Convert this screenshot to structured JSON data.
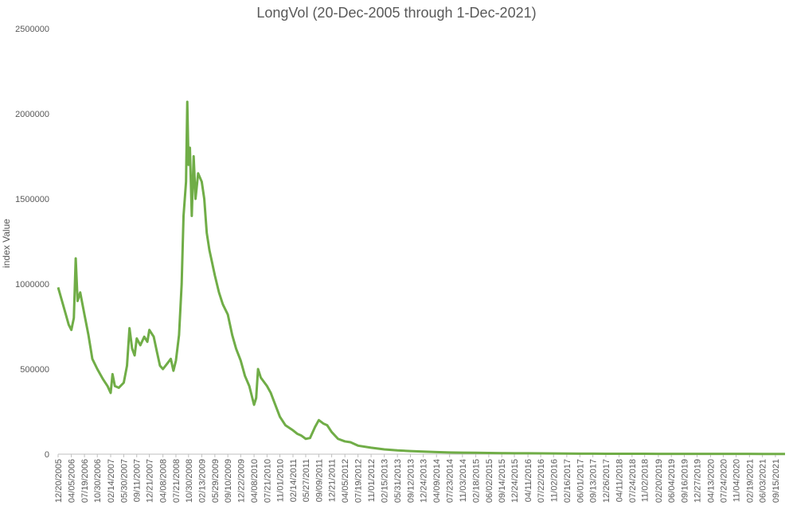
{
  "chart_data": {
    "type": "line",
    "title": "LongVol (20-Dec-2005 through 1-Dec-2021)",
    "xlabel": "",
    "ylabel": "index Value",
    "ylim": [
      0,
      2500000
    ],
    "y_ticks": [
      "0",
      "500000",
      "1000000",
      "1500000",
      "2000000",
      "2500000"
    ],
    "grid": false,
    "legend": "none",
    "line_color": "#70ad47",
    "x_tick_labels": [
      "12/20/2005",
      "04/05/2006",
      "07/19/2006",
      "10/30/2006",
      "02/14/2007",
      "05/30/2007",
      "09/11/2007",
      "12/21/2007",
      "04/08/2008",
      "07/21/2008",
      "10/30/2008",
      "02/13/2009",
      "05/29/2009",
      "09/10/2009",
      "12/22/2009",
      "04/08/2010",
      "07/21/2010",
      "11/01/2010",
      "02/14/2011",
      "05/27/2011",
      "09/09/2011",
      "12/21/2011",
      "04/05/2012",
      "07/19/2012",
      "11/01/2012",
      "02/15/2013",
      "05/31/2013",
      "09/12/2013",
      "12/24/2013",
      "04/09/2014",
      "07/23/2014",
      "11/03/2014",
      "02/18/2015",
      "06/02/2015",
      "09/14/2015",
      "12/24/2015",
      "04/11/2016",
      "07/22/2016",
      "11/02/2016",
      "02/16/2017",
      "06/01/2017",
      "09/13/2017",
      "12/26/2017",
      "04/11/2018",
      "07/24/2018",
      "11/02/2018",
      "02/20/2019",
      "06/04/2019",
      "09/16/2019",
      "12/27/2019",
      "04/13/2020",
      "07/24/2020",
      "11/04/2020",
      "02/19/2021",
      "06/03/2021",
      "09/15/2021"
    ],
    "series": [
      {
        "points": [
          [
            "12/20/2005",
            980000
          ],
          [
            "01/20/2006",
            900000
          ],
          [
            "02/20/2006",
            820000
          ],
          [
            "03/15/2006",
            760000
          ],
          [
            "04/05/2006",
            730000
          ],
          [
            "04/25/2006",
            800000
          ],
          [
            "05/10/2006",
            1150000
          ],
          [
            "05/25/2006",
            900000
          ],
          [
            "06/15/2006",
            950000
          ],
          [
            "07/19/2006",
            820000
          ],
          [
            "08/20/2006",
            700000
          ],
          [
            "09/20/2006",
            560000
          ],
          [
            "10/30/2006",
            500000
          ],
          [
            "12/15/2006",
            440000
          ],
          [
            "01/20/2007",
            400000
          ],
          [
            "02/14/2007",
            360000
          ],
          [
            "03/01/2007",
            470000
          ],
          [
            "03/20/2007",
            400000
          ],
          [
            "04/20/2007",
            390000
          ],
          [
            "05/30/2007",
            420000
          ],
          [
            "06/25/2007",
            520000
          ],
          [
            "07/15/2007",
            740000
          ],
          [
            "08/05/2007",
            620000
          ],
          [
            "08/25/2007",
            580000
          ],
          [
            "09/11/2007",
            680000
          ],
          [
            "10/10/2007",
            640000
          ],
          [
            "11/10/2007",
            690000
          ],
          [
            "12/05/2007",
            660000
          ],
          [
            "12/21/2007",
            730000
          ],
          [
            "01/25/2008",
            690000
          ],
          [
            "02/20/2008",
            600000
          ],
          [
            "03/15/2008",
            520000
          ],
          [
            "04/08/2008",
            500000
          ],
          [
            "05/10/2008",
            530000
          ],
          [
            "06/10/2008",
            560000
          ],
          [
            "07/01/2008",
            490000
          ],
          [
            "07/21/2008",
            550000
          ],
          [
            "08/15/2008",
            700000
          ],
          [
            "09/05/2008",
            1000000
          ],
          [
            "09/20/2008",
            1400000
          ],
          [
            "10/10/2008",
            1600000
          ],
          [
            "10/20/2008",
            2070000
          ],
          [
            "10/30/2008",
            1700000
          ],
          [
            "11/10/2008",
            1800000
          ],
          [
            "11/25/2008",
            1400000
          ],
          [
            "12/10/2008",
            1750000
          ],
          [
            "12/25/2008",
            1500000
          ],
          [
            "01/15/2009",
            1650000
          ],
          [
            "02/13/2009",
            1600000
          ],
          [
            "03/05/2009",
            1500000
          ],
          [
            "03/25/2009",
            1300000
          ],
          [
            "04/15/2009",
            1200000
          ],
          [
            "05/29/2009",
            1050000
          ],
          [
            "07/01/2009",
            950000
          ],
          [
            "08/01/2009",
            880000
          ],
          [
            "09/10/2009",
            820000
          ],
          [
            "10/15/2009",
            700000
          ],
          [
            "11/15/2009",
            620000
          ],
          [
            "12/22/2009",
            550000
          ],
          [
            "01/25/2010",
            460000
          ],
          [
            "03/01/2010",
            400000
          ],
          [
            "04/08/2010",
            290000
          ],
          [
            "04/25/2010",
            330000
          ],
          [
            "05/10/2010",
            500000
          ],
          [
            "06/01/2010",
            450000
          ],
          [
            "07/21/2010",
            400000
          ],
          [
            "08/20/2010",
            360000
          ],
          [
            "09/20/2010",
            300000
          ],
          [
            "11/01/2010",
            220000
          ],
          [
            "12/15/2010",
            170000
          ],
          [
            "02/14/2011",
            140000
          ],
          [
            "03/20/2011",
            120000
          ],
          [
            "04/20/2011",
            110000
          ],
          [
            "05/27/2011",
            90000
          ],
          [
            "07/01/2011",
            95000
          ],
          [
            "08/10/2011",
            160000
          ],
          [
            "09/09/2011",
            200000
          ],
          [
            "10/15/2011",
            180000
          ],
          [
            "11/15/2011",
            170000
          ],
          [
            "12/21/2011",
            130000
          ],
          [
            "02/10/2012",
            90000
          ],
          [
            "04/05/2012",
            75000
          ],
          [
            "05/20/2012",
            70000
          ],
          [
            "07/19/2012",
            50000
          ],
          [
            "11/01/2012",
            38000
          ],
          [
            "02/15/2013",
            28000
          ],
          [
            "05/31/2013",
            22000
          ],
          [
            "09/12/2013",
            18000
          ],
          [
            "12/24/2013",
            15000
          ],
          [
            "04/09/2014",
            12000
          ],
          [
            "07/23/2014",
            10000
          ],
          [
            "11/03/2014",
            9000
          ],
          [
            "02/18/2015",
            8000
          ],
          [
            "06/02/2015",
            7000
          ],
          [
            "09/14/2015",
            6000
          ],
          [
            "12/24/2015",
            5500
          ],
          [
            "04/11/2016",
            5000
          ],
          [
            "07/22/2016",
            4500
          ],
          [
            "11/02/2016",
            4000
          ],
          [
            "02/16/2017",
            3500
          ],
          [
            "06/01/2017",
            3000
          ],
          [
            "09/13/2017",
            2800
          ],
          [
            "12/26/2017",
            2500
          ],
          [
            "04/11/2018",
            2400
          ],
          [
            "07/24/2018",
            2200
          ],
          [
            "11/02/2018",
            2100
          ],
          [
            "02/20/2019",
            2000
          ],
          [
            "06/04/2019",
            1900
          ],
          [
            "09/16/2019",
            1800
          ],
          [
            "12/27/2019",
            1700
          ],
          [
            "04/13/2020",
            1900
          ],
          [
            "07/24/2020",
            1700
          ],
          [
            "11/04/2020",
            1600
          ],
          [
            "02/19/2021",
            1500
          ],
          [
            "06/03/2021",
            1400
          ],
          [
            "09/15/2021",
            1300
          ],
          [
            "12/01/2021",
            1200
          ]
        ]
      }
    ]
  }
}
